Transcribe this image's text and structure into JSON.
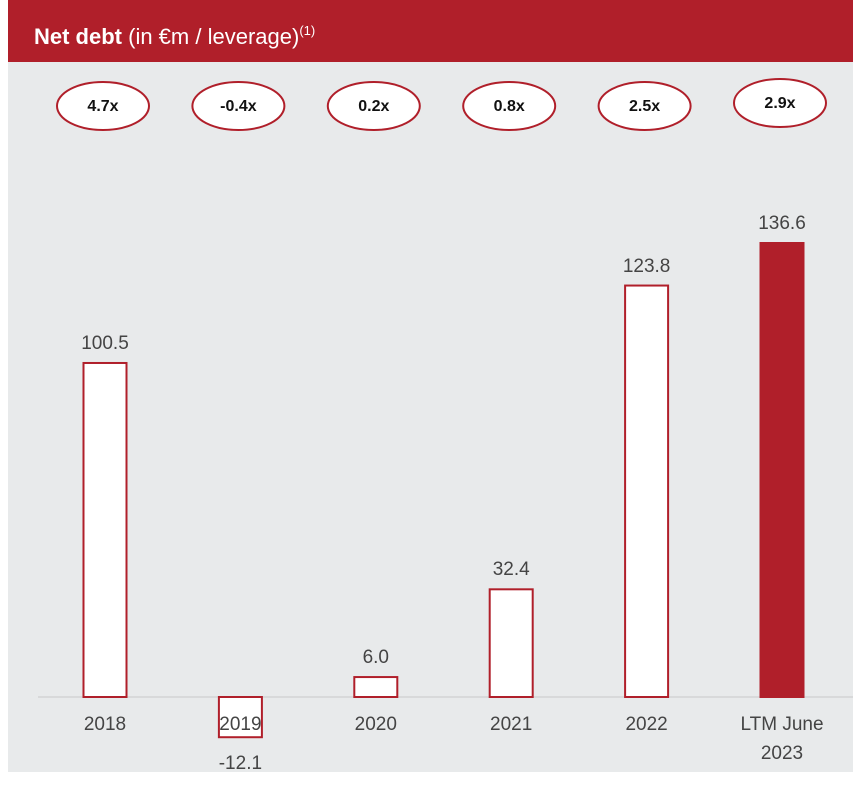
{
  "chart_data": {
    "type": "bar",
    "title": "Net debt",
    "subtitle": "(in €m / leverage)",
    "footnote_marker": "(1)",
    "categories": [
      "2018",
      "2019",
      "2020",
      "2021",
      "2022",
      "LTM June 2023"
    ],
    "values": [
      100.5,
      -12.1,
      6.0,
      32.4,
      123.8,
      136.6
    ],
    "value_labels": [
      "100.5",
      "-12.1",
      "6.0",
      "32.4",
      "123.8",
      "136.6"
    ],
    "leverage": [
      "4.7x",
      "-0.4x",
      "0.2x",
      "0.8x",
      "2.5x",
      "2.9x"
    ],
    "colors": [
      "#ffffff",
      "#ffffff",
      "#ffffff",
      "#ffffff",
      "#ffffff",
      "#b01f2a"
    ],
    "border_color": "#b01f2a"
  }
}
